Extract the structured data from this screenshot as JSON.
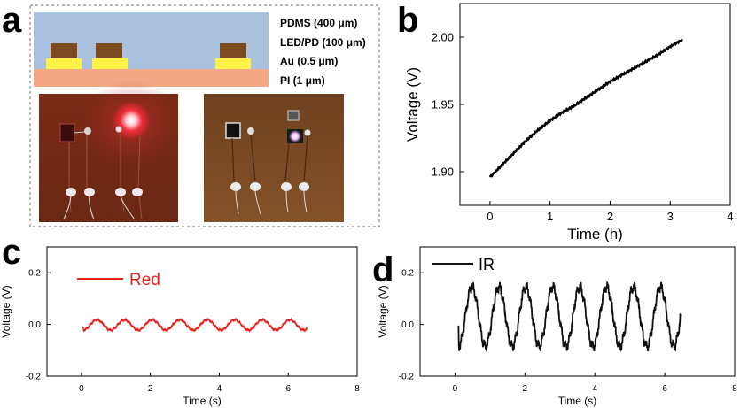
{
  "panel_labels": [
    "a",
    "b",
    "c",
    "d"
  ],
  "schematic": {
    "layers": [
      {
        "label": "PDMS (400 μm)",
        "color": "#a9c1dd"
      },
      {
        "label": "LED/PD (100 μm)",
        "color": "#7b4a1e"
      },
      {
        "label": "Au (0.5 μm)",
        "color": "#fff247"
      },
      {
        "label": "PI  (1 μm)",
        "color": "#f4a985"
      }
    ]
  },
  "photos": [
    {
      "name": "photo-led-on-red",
      "glow": "#ff2d3d",
      "background": "#6e2a16"
    },
    {
      "name": "photo-led-on-ir",
      "glow": "#f4e0ff",
      "background": "#7a4a24"
    }
  ],
  "chart_data": [
    {
      "panel": "b",
      "type": "line",
      "title": "",
      "xlabel": "Time (h)",
      "ylabel": "Voltage (V)",
      "xlim": [
        -0.5,
        4
      ],
      "ylim": [
        1.875,
        2.025
      ],
      "xticks": [
        0,
        1,
        2,
        3,
        4
      ],
      "yticks": [
        1.9,
        1.95,
        2.0
      ],
      "ytick_labels": [
        "1.90",
        "1.95",
        "2.00"
      ],
      "series": [
        {
          "color": "#000000",
          "x": [
            0,
            0.2,
            0.4,
            0.6,
            0.8,
            1.0,
            1.2,
            1.4,
            1.6,
            1.8,
            2.0,
            2.2,
            2.4,
            2.6,
            2.8,
            3.0,
            3.2
          ],
          "y": [
            1.896,
            1.905,
            1.914,
            1.923,
            1.931,
            1.938,
            1.944,
            1.949,
            1.955,
            1.961,
            1.967,
            1.972,
            1.977,
            1.982,
            1.987,
            1.993,
            1.998
          ]
        }
      ]
    },
    {
      "panel": "c",
      "type": "line",
      "title": "",
      "xlabel": "Time (s)",
      "ylabel": "Voltage (V)",
      "xlim": [
        -1,
        8
      ],
      "ylim": [
        -0.2,
        0.3
      ],
      "xticks": [
        0,
        2,
        4,
        6,
        8
      ],
      "yticks": [
        -0.2,
        0.0,
        0.2
      ],
      "ytick_labels": [
        "-0.2",
        "0.0",
        "0.2"
      ],
      "legend": {
        "label": "Red",
        "color": "#e8231f",
        "placement": "top-left"
      },
      "series": [
        {
          "name": "Red",
          "color": "#e8231f",
          "t_start": 0.05,
          "t_end": 6.55,
          "period": 0.8,
          "amplitude": 0.02,
          "offset": -0.002
        }
      ]
    },
    {
      "panel": "d",
      "type": "line",
      "title": "",
      "xlabel": "Time (s)",
      "ylabel": "Voltage (V)",
      "xlim": [
        -1,
        8
      ],
      "ylim": [
        -0.2,
        0.3
      ],
      "xticks": [
        0,
        2,
        4,
        6,
        8
      ],
      "yticks": [
        -0.2,
        0.0,
        0.2
      ],
      "ytick_labels": [
        "-0.2",
        "0.0",
        "0.2"
      ],
      "legend": {
        "label": "IR",
        "color": "#111111",
        "placement": "top-left"
      },
      "series": [
        {
          "name": "IR",
          "color": "#111111",
          "t_start": 0.1,
          "t_end": 6.45,
          "period": 0.77,
          "amplitude": 0.115,
          "offset": 0.03
        }
      ]
    }
  ]
}
